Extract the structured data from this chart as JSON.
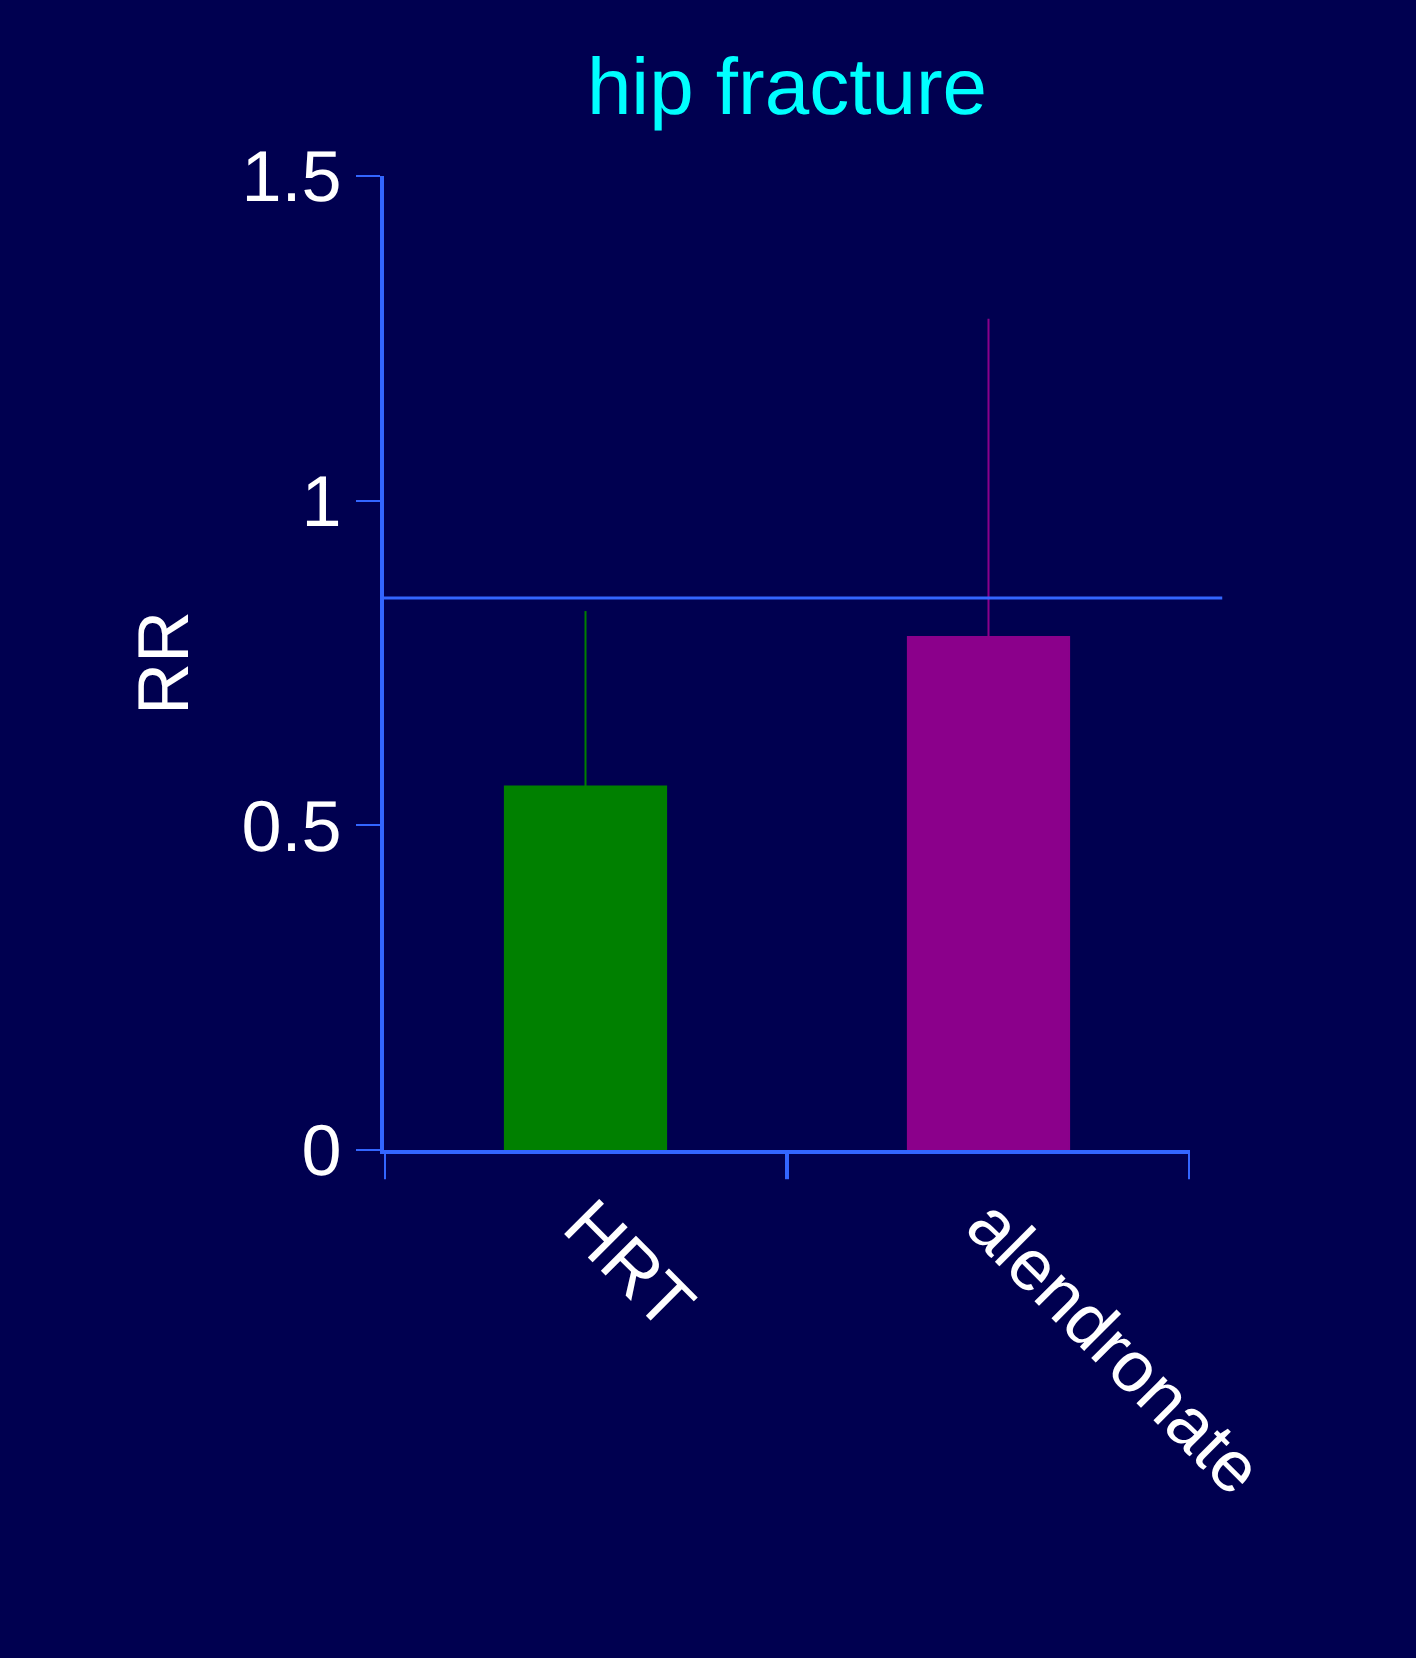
{
  "chart_data": {
    "type": "bar",
    "title": "hip fracture",
    "ylabel": "RR",
    "categories": [
      "HRT",
      "alendronate"
    ],
    "values": [
      0.56,
      0.79
    ],
    "colors": [
      "#008000",
      "#8b008b"
    ],
    "errors": [
      [
        0.56,
        0.83
      ],
      [
        0.79,
        1.28
      ]
    ],
    "ylim": [
      0,
      1.5
    ],
    "yticks": [
      0,
      0.5,
      1,
      1.5
    ],
    "ref_lines": [
      {
        "axis": "y",
        "value": 0.85,
        "color": "#3366ff"
      }
    ],
    "grid": false
  }
}
